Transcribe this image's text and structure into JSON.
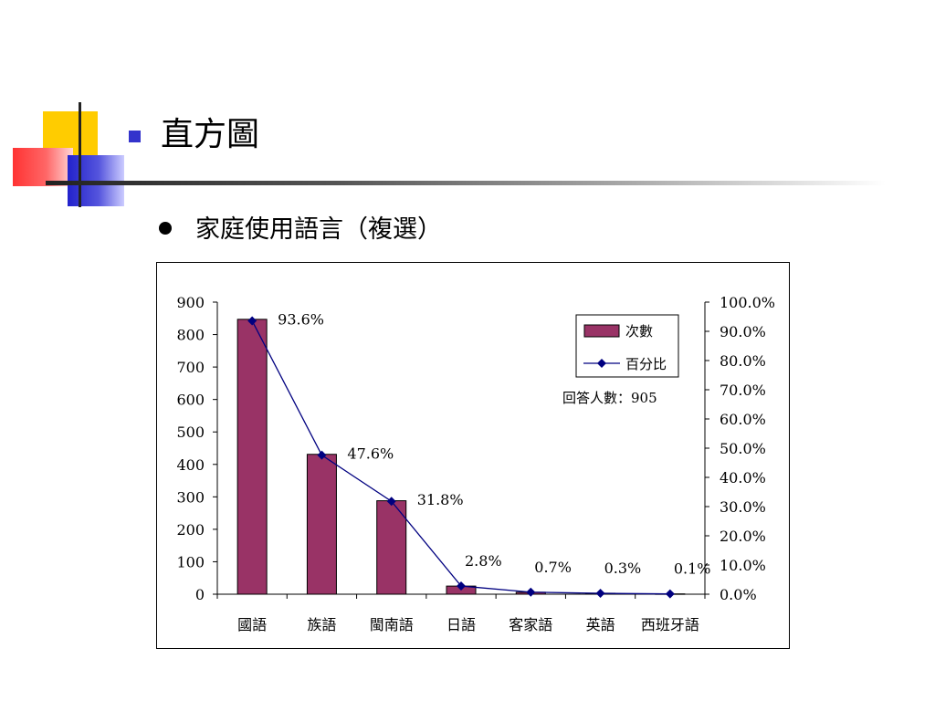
{
  "slide": {
    "title": "直方圖",
    "bullet": "家庭使用語言（複選）"
  },
  "colors": {
    "bar": "#993366",
    "line": "#000080",
    "title_bullet": "#3333cc"
  },
  "chart_data": {
    "type": "bar",
    "categories": [
      "國語",
      "族語",
      "閩南語",
      "日語",
      "客家語",
      "英語",
      "西班牙語"
    ],
    "series": [
      {
        "name": "次數",
        "type": "bar",
        "axis": "left",
        "values": [
          847,
          431,
          288,
          25,
          6,
          3,
          1
        ]
      },
      {
        "name": "百分比",
        "type": "line",
        "axis": "right",
        "values": [
          93.6,
          47.6,
          31.8,
          2.8,
          0.7,
          0.3,
          0.1
        ],
        "labels": [
          "93.6%",
          "47.6%",
          "31.8%",
          "2.8%",
          "0.7%",
          "0.3%",
          "0.1%"
        ]
      }
    ],
    "y_left": {
      "ylim": [
        0,
        900
      ],
      "ticks": [
        "0",
        "100",
        "200",
        "300",
        "400",
        "500",
        "600",
        "700",
        "800",
        "900"
      ]
    },
    "y_right": {
      "ylim": [
        0,
        100
      ],
      "ticks": [
        "0.0%",
        "10.0%",
        "20.0%",
        "30.0%",
        "40.0%",
        "50.0%",
        "60.0%",
        "70.0%",
        "80.0%",
        "90.0%",
        "100.0%"
      ]
    },
    "legend": {
      "placement": "top-right",
      "entries": [
        "次數",
        "百分比"
      ]
    },
    "annotation": "回答人數：905",
    "grid": false
  }
}
